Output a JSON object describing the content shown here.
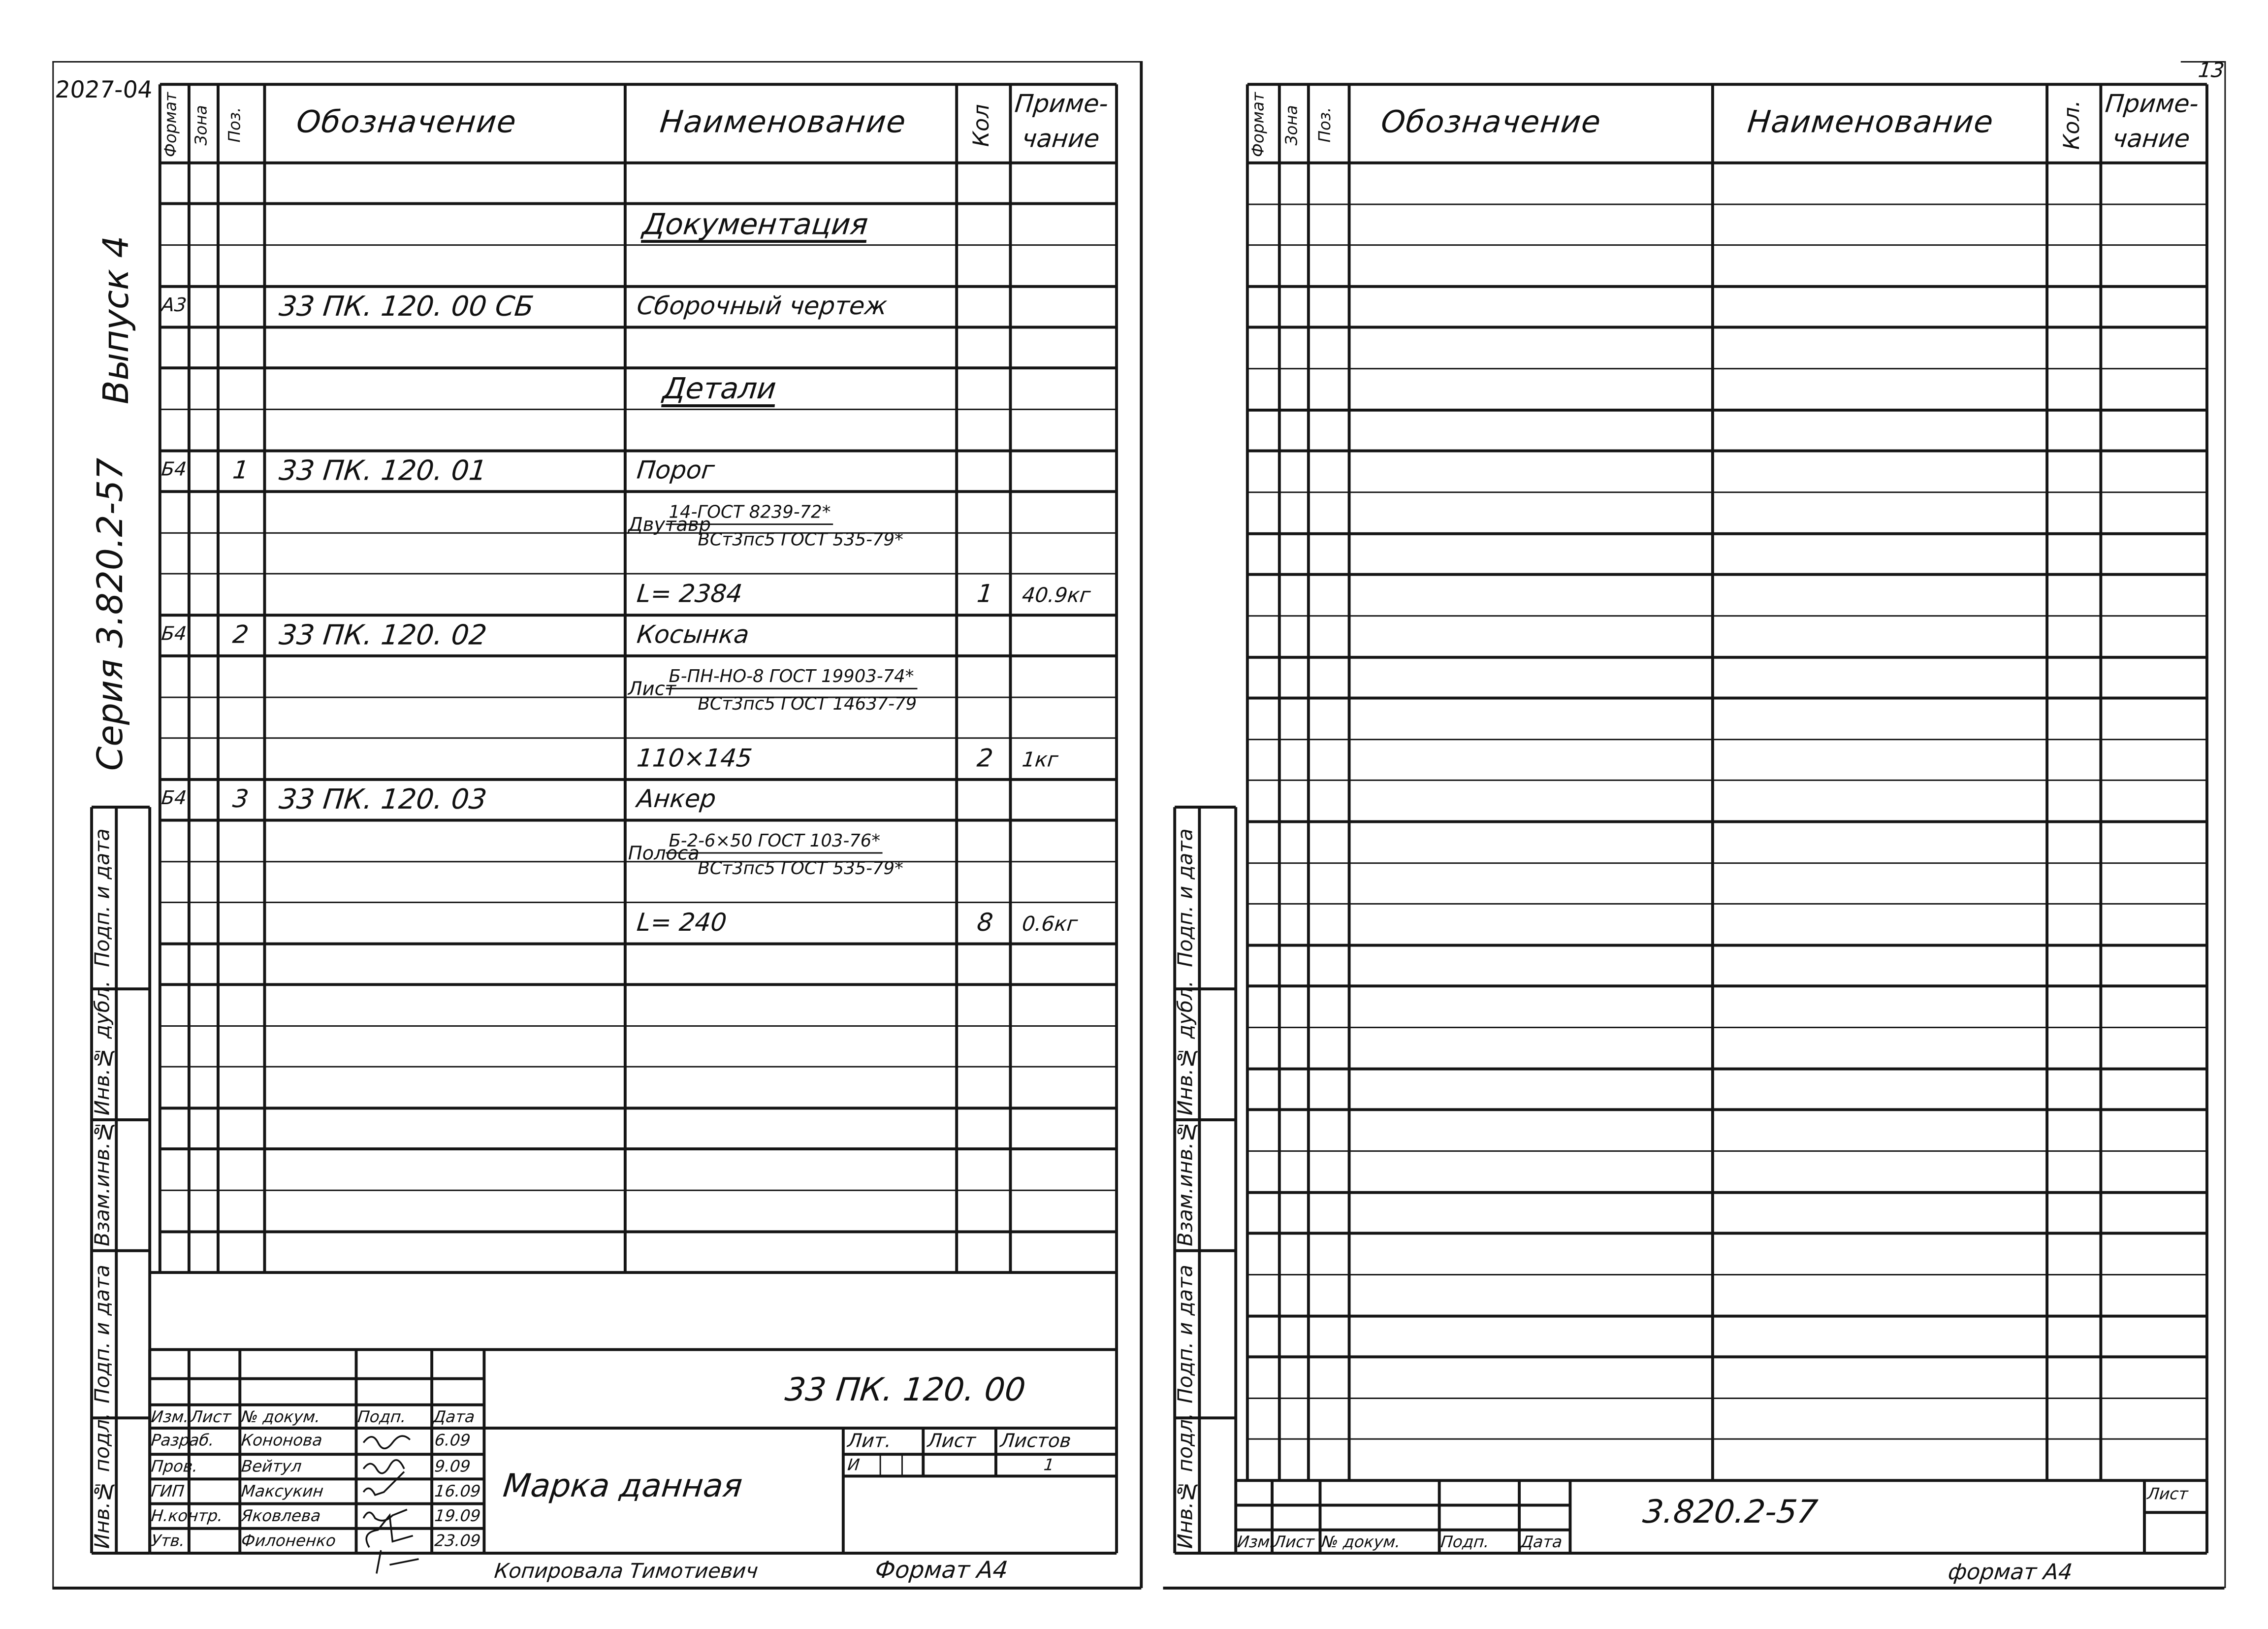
{
  "corner_number": "2027-04",
  "sheet_number": "13",
  "series": "Серия 3.820.2-57",
  "issue": "Выпуск 4",
  "side_strip": [
    "Подп. и дата",
    "Инв.№ дубл.",
    "Взам.инв.№",
    "Подп. и дата",
    "Инв.№ подл."
  ],
  "columns": {
    "format": "Формат",
    "zone": "Зона",
    "pos": "Поз.",
    "designation": "Обозначение",
    "name": "Наименование",
    "qty": "Кол",
    "note_1": "Приме-",
    "note_2": "чание"
  },
  "left_sheet": {
    "rows": [
      {},
      {
        "name": "Документация",
        "section": true
      },
      {},
      {
        "format": "А3",
        "designation": "33 ПК. 120. 00 СБ",
        "name": "Сборочный чертеж"
      },
      {},
      {
        "name": "Детали",
        "section": true
      },
      {},
      {
        "format": "Б4",
        "pos": "1",
        "designation": "33 ПК. 120. 01",
        "name": "Порог"
      },
      {
        "material": "Двутавр",
        "numerator": "14-ГОСТ 8239-72*",
        "denominator": "ВСт3пс5 ГОСТ 535-79*"
      },
      {
        "name": "L= 2384",
        "qty": "1",
        "note": "40.9кг"
      },
      {
        "format": "Б4",
        "pos": "2",
        "designation": "33 ПК. 120. 02",
        "name": "Косынка"
      },
      {
        "material": "Лист",
        "numerator": "Б-ПН-НО-8 ГОСТ 19903-74*",
        "denominator": "ВСт3пс5 ГОСТ 14637-79"
      },
      {
        "name": "110×145",
        "qty": "2",
        "note": "1кг"
      },
      {
        "format": "Б4",
        "pos": "3",
        "designation": "33 ПК. 120. 03",
        "name": "Анкер"
      },
      {
        "material": "Полоса",
        "numerator": "Б-2-6×50 ГОСТ 103-76*",
        "denominator": "ВСт3пс5 ГОСТ 535-79*"
      },
      {
        "name": "L= 240",
        "qty": "8",
        "note": "0.6кг"
      }
    ],
    "title_block": {
      "revision_header": [
        "Изм.",
        "Лист",
        "№ докум.",
        "Подп.",
        "Дата"
      ],
      "signers": [
        {
          "role": "Разраб.",
          "name": "Кононова",
          "date": "6.09"
        },
        {
          "role": "Пров.",
          "name": "Вейтул",
          "date": "9.09"
        },
        {
          "role": "ГИП",
          "name": "Максукин",
          "date": "16.09"
        },
        {
          "role": "Н.контр.",
          "name": "Яковлева",
          "date": "19.09"
        },
        {
          "role": "Утв.",
          "name": "Филоненко",
          "date": "23.09"
        }
      ],
      "designation": "33 ПК. 120. 00",
      "title": "Марка данная",
      "lit_header": [
        "Лит.",
        "Лист",
        "Листов"
      ],
      "lit": "И",
      "sheets_total": "1"
    },
    "footer": {
      "copied_by": "Копировала Тимотиевич",
      "format": "Формат А4"
    }
  },
  "right_sheet": {
    "columns": {
      "format": "Формат",
      "zone": "Зона",
      "pos": "Поз.",
      "designation": "Обозначение",
      "name": "Наименование",
      "qty": "Кол.",
      "note_1": "Приме-",
      "note_2": "чание"
    },
    "title_block": {
      "revision_header": [
        "Изм.",
        "Лист",
        "№ докум.",
        "Подп.",
        "Дата"
      ],
      "designation": "3.820.2-57",
      "sheet_label": "Лист"
    },
    "footer": {
      "format": "формат А4"
    }
  }
}
